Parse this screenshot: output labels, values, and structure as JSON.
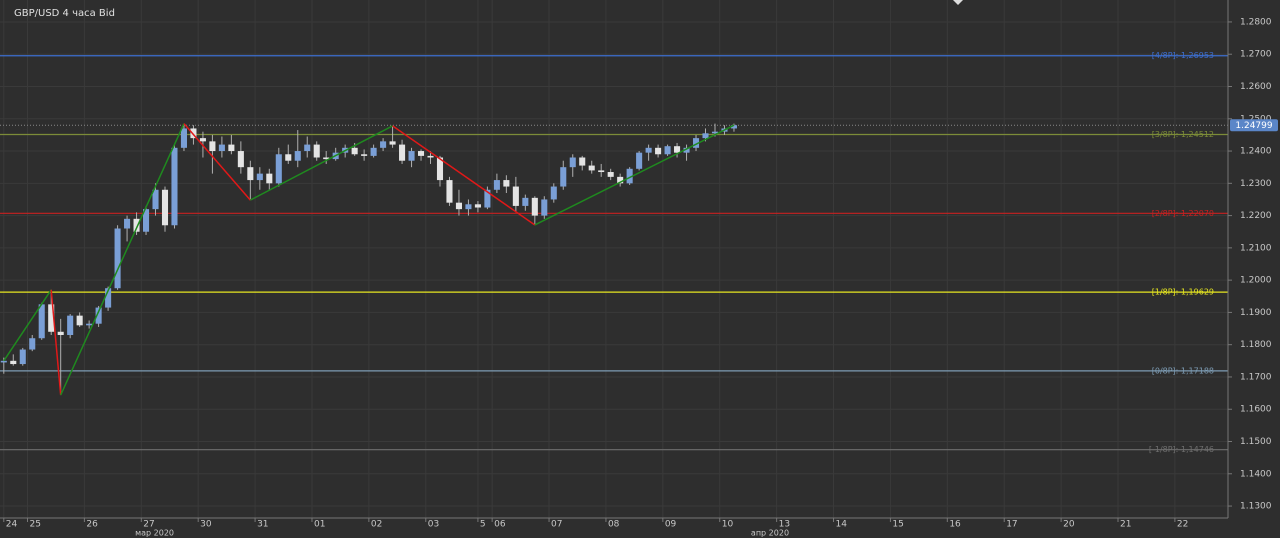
{
  "chart_data": {
    "type": "candlestick",
    "title": "GBP/USD  4 часа Bid",
    "up_color": "#7a9fd6",
    "down_color": "#e4e4e4",
    "wick_color": "#b0b0b0",
    "ylim": [
      1.1263,
      1.2868
    ],
    "yticks": [
      {
        "value": 1.13,
        "label": "1.1300"
      },
      {
        "value": 1.14,
        "label": "1.1400"
      },
      {
        "value": 1.15,
        "label": "1.1500"
      },
      {
        "value": 1.16,
        "label": "1.1600"
      },
      {
        "value": 1.17,
        "label": "1.1700"
      },
      {
        "value": 1.18,
        "label": "1.1800"
      },
      {
        "value": 1.19,
        "label": "1.1900"
      },
      {
        "value": 1.2,
        "label": "1.2000"
      },
      {
        "value": 1.21,
        "label": "1.2100"
      },
      {
        "value": 1.22,
        "label": "1.2200"
      },
      {
        "value": 1.23,
        "label": "1.2300"
      },
      {
        "value": 1.24,
        "label": "1.2400"
      },
      {
        "value": 1.25,
        "label": "1.2500"
      },
      {
        "value": 1.26,
        "label": "1.2600"
      },
      {
        "value": 1.27,
        "label": "1.2700"
      },
      {
        "value": 1.28,
        "label": "1.2800"
      }
    ],
    "xlim": [
      -0.4,
      129.1
    ],
    "xticks": [
      {
        "value": 0,
        "label": "24"
      },
      {
        "value": 2.5,
        "label": "25"
      },
      {
        "value": 8.5,
        "label": "26"
      },
      {
        "value": 14.5,
        "label": "27"
      },
      {
        "value": 20.5,
        "label": "30"
      },
      {
        "value": 26.5,
        "label": "31"
      },
      {
        "value": 32.5,
        "label": "01"
      },
      {
        "value": 38.5,
        "label": "02"
      },
      {
        "value": 44.5,
        "label": "03"
      },
      {
        "value": 50,
        "label": "5"
      },
      {
        "value": 51.5,
        "label": "06"
      },
      {
        "value": 57.5,
        "label": "07"
      },
      {
        "value": 63.5,
        "label": "08"
      },
      {
        "value": 69.5,
        "label": "09"
      },
      {
        "value": 75.5,
        "label": "10"
      },
      {
        "value": 81.5,
        "label": "13"
      },
      {
        "value": 87.5,
        "label": "14"
      },
      {
        "value": 93.5,
        "label": "15"
      },
      {
        "value": 99.5,
        "label": "16"
      },
      {
        "value": 105.5,
        "label": "17"
      },
      {
        "value": 111.5,
        "label": "20"
      },
      {
        "value": 117.5,
        "label": "21"
      },
      {
        "value": 123.5,
        "label": "22"
      }
    ],
    "months": [
      {
        "value": 15.9,
        "label": "мар 2020"
      },
      {
        "value": 80.8,
        "label": "апр 2020"
      }
    ],
    "grid": true,
    "x": [
      0,
      1,
      2,
      3,
      4,
      5,
      6,
      7,
      8,
      9,
      10,
      11,
      12,
      13,
      14,
      15,
      16,
      17,
      18,
      19,
      20,
      21,
      22,
      23,
      24,
      25,
      26,
      27,
      28,
      29,
      30,
      31,
      32,
      33,
      34,
      35,
      36,
      37,
      38,
      39,
      40,
      41,
      42,
      43,
      44,
      45,
      46,
      47,
      48,
      49,
      50,
      51,
      52,
      53,
      54,
      55,
      56,
      57,
      58,
      59,
      60,
      61,
      62,
      63,
      64,
      65,
      66,
      67,
      68,
      69,
      70,
      71,
      72,
      73,
      74,
      75,
      76,
      77
    ],
    "open": [
      1.1745,
      1.175,
      1.174,
      1.1785,
      1.182,
      1.1925,
      1.184,
      1.183,
      1.189,
      1.186,
      1.1865,
      1.1915,
      1.1975,
      1.216,
      1.219,
      1.215,
      1.222,
      1.228,
      1.217,
      1.241,
      1.247,
      1.244,
      1.243,
      1.24,
      1.242,
      1.24,
      1.235,
      1.231,
      1.233,
      1.23,
      1.239,
      1.237,
      1.24,
      1.242,
      1.238,
      1.2375,
      1.2395,
      1.241,
      1.239,
      1.2385,
      1.241,
      1.243,
      1.242,
      1.237,
      1.24,
      1.2385,
      1.238,
      1.231,
      1.224,
      1.222,
      1.2235,
      1.2225,
      1.228,
      1.231,
      1.229,
      1.223,
      1.2255,
      1.22,
      1.225,
      1.229,
      1.235,
      1.238,
      1.2355,
      1.234,
      1.2335,
      1.232,
      1.23,
      1.2345,
      1.2395,
      1.241,
      1.239,
      1.2415,
      1.2395,
      1.241,
      1.244,
      1.2455,
      1.246,
      1.247
    ],
    "high": [
      1.176,
      1.177,
      1.179,
      1.183,
      1.193,
      1.197,
      1.188,
      1.1895,
      1.19,
      1.1875,
      1.192,
      1.198,
      1.217,
      1.22,
      1.221,
      1.223,
      1.23,
      1.229,
      1.242,
      1.2485,
      1.248,
      1.246,
      1.245,
      1.2445,
      1.245,
      1.243,
      1.237,
      1.235,
      1.2345,
      1.241,
      1.242,
      1.2465,
      1.2445,
      1.243,
      1.24,
      1.241,
      1.242,
      1.2425,
      1.2405,
      1.242,
      1.244,
      1.2478,
      1.2435,
      1.241,
      1.2405,
      1.24,
      1.2385,
      1.232,
      1.228,
      1.225,
      1.2245,
      1.229,
      1.233,
      1.2325,
      1.232,
      1.2265,
      1.226,
      1.226,
      1.23,
      1.237,
      1.239,
      1.2385,
      1.237,
      1.236,
      1.2345,
      1.233,
      1.235,
      1.24,
      1.242,
      1.242,
      1.242,
      1.2425,
      1.242,
      1.245,
      1.247,
      1.2485,
      1.248,
      1.2485
    ],
    "low": [
      1.171,
      1.1735,
      1.1735,
      1.178,
      1.1815,
      1.183,
      1.1644,
      1.182,
      1.1855,
      1.185,
      1.1855,
      1.1905,
      1.197,
      1.212,
      1.214,
      1.214,
      1.22,
      1.215,
      1.216,
      1.24,
      1.242,
      1.238,
      1.233,
      1.238,
      1.239,
      1.233,
      1.2248,
      1.228,
      1.228,
      1.229,
      1.236,
      1.235,
      1.238,
      1.237,
      1.236,
      1.237,
      1.238,
      1.2385,
      1.237,
      1.238,
      1.24,
      1.241,
      1.236,
      1.235,
      1.237,
      1.236,
      1.229,
      1.223,
      1.22,
      1.22,
      1.221,
      1.222,
      1.227,
      1.227,
      1.221,
      1.2215,
      1.2171,
      1.219,
      1.224,
      1.228,
      1.232,
      1.234,
      1.233,
      1.232,
      1.231,
      1.229,
      1.2295,
      1.234,
      1.237,
      1.238,
      1.2385,
      1.238,
      1.237,
      1.24,
      1.243,
      1.2445,
      1.245,
      1.246
    ],
    "close": [
      1.175,
      1.174,
      1.1785,
      1.182,
      1.1925,
      1.184,
      1.183,
      1.189,
      1.186,
      1.1865,
      1.1915,
      1.1975,
      1.216,
      1.219,
      1.215,
      1.222,
      1.228,
      1.217,
      1.241,
      1.247,
      1.244,
      1.243,
      1.24,
      1.242,
      1.24,
      1.235,
      1.231,
      1.233,
      1.23,
      1.239,
      1.237,
      1.24,
      1.242,
      1.238,
      1.2375,
      1.2395,
      1.241,
      1.239,
      1.2385,
      1.241,
      1.243,
      1.242,
      1.237,
      1.24,
      1.2385,
      1.238,
      1.231,
      1.224,
      1.222,
      1.2235,
      1.2225,
      1.228,
      1.231,
      1.229,
      1.223,
      1.2255,
      1.22,
      1.225,
      1.229,
      1.235,
      1.238,
      1.2355,
      1.234,
      1.2335,
      1.232,
      1.23,
      1.2345,
      1.2395,
      1.241,
      1.239,
      1.2415,
      1.2395,
      1.241,
      1.244,
      1.2455,
      1.246,
      1.247,
      1.248
    ],
    "zigzag": {
      "up_color": "#1f8a1f",
      "down_color": "#e01818",
      "x": [
        0,
        5,
        6,
        19,
        26,
        41,
        56,
        77
      ],
      "y": [
        1.175,
        1.197,
        1.1644,
        1.2485,
        1.2248,
        1.2478,
        1.2171,
        1.248
      ]
    },
    "levels": [
      {
        "label": "[4/8P]: 1,26953",
        "value": 1.26953,
        "color": "#3d6fd0"
      },
      {
        "label": "[3/8P]: 1,24512",
        "value": 1.24512,
        "color": "#7c8c38"
      },
      {
        "label": "[2/8P]: 1,22070",
        "value": 1.2207,
        "color": "#c82020"
      },
      {
        "label": "[1/8P]: 1,19629",
        "value": 1.19629,
        "color": "#e6e620"
      },
      {
        "label": "[0/8P]: 1,17188",
        "value": 1.17188,
        "color": "#7d9cb4"
      },
      {
        "label": "[-1/8P]: 1,14746",
        "value": 1.14746,
        "color": "#6e6e6e"
      }
    ],
    "last_price": {
      "value": 1.24799,
      "label": "1.24799",
      "color": "#5b86c8"
    }
  }
}
